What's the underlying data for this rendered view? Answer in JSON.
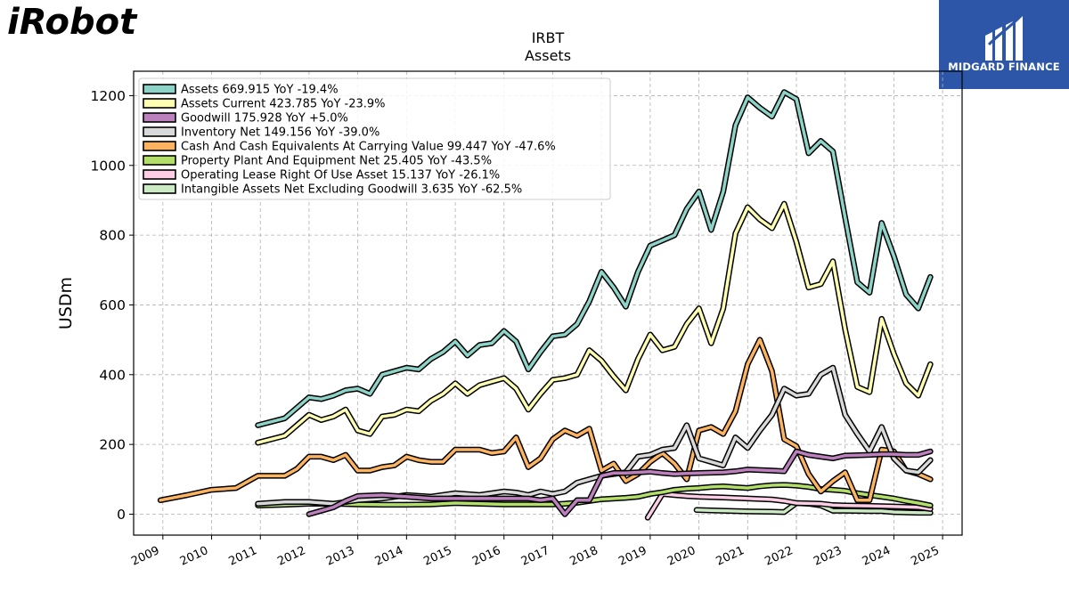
{
  "branding": {
    "left_logo_text": "iRobot",
    "left_logo_color": "#6aab1e",
    "right_logo_text": "MIDGARD FINANCE",
    "right_logo_bg": "#2d56a8"
  },
  "chart_data": {
    "type": "line",
    "title": "IRBT",
    "subtitle": "Assets",
    "ylabel": "USDm",
    "xlabel": "",
    "xlim": [
      2008.4,
      2025.4
    ],
    "ylim": [
      -60,
      1270
    ],
    "x_ticks": [
      "2009",
      "2010",
      "2011",
      "2012",
      "2013",
      "2014",
      "2015",
      "2016",
      "2017",
      "2018",
      "2019",
      "2020",
      "2021",
      "2022",
      "2023",
      "2024",
      "2025"
    ],
    "y_ticks": [
      "0",
      "200",
      "400",
      "600",
      "800",
      "1000",
      "1200"
    ],
    "grid": true,
    "legend_position": "top-left",
    "series": [
      {
        "name": "Assets  669.915 YoY -19.4%",
        "color": "#8dd3c7",
        "x": [
          2010.95,
          2011.5,
          2012.0,
          2012.25,
          2012.5,
          2012.75,
          2013.0,
          2013.25,
          2013.5,
          2013.75,
          2014.0,
          2014.25,
          2014.5,
          2014.75,
          2015.0,
          2015.25,
          2015.5,
          2015.75,
          2016.0,
          2016.25,
          2016.5,
          2016.75,
          2017.0,
          2017.25,
          2017.5,
          2017.75,
          2018.0,
          2018.25,
          2018.5,
          2018.75,
          2019.0,
          2019.25,
          2019.5,
          2019.75,
          2020.0,
          2020.25,
          2020.5,
          2020.75,
          2021.0,
          2021.25,
          2021.5,
          2021.75,
          2022.0,
          2022.25,
          2022.5,
          2022.75,
          2023.0,
          2023.25,
          2023.5,
          2023.75,
          2024.0,
          2024.25,
          2024.5,
          2024.75
        ],
        "y": [
          255,
          275,
          335,
          330,
          340,
          355,
          360,
          345,
          400,
          410,
          420,
          415,
          445,
          465,
          495,
          455,
          485,
          490,
          525,
          495,
          415,
          465,
          510,
          515,
          545,
          610,
          695,
          650,
          595,
          695,
          770,
          785,
          800,
          875,
          925,
          815,
          925,
          1115,
          1195,
          1165,
          1140,
          1210,
          1190,
          1035,
          1070,
          1040,
          850,
          665,
          635,
          835,
          740,
          630,
          590,
          680
        ]
      },
      {
        "name": "Assets Current  423.785 YoY -23.9%",
        "color": "#ffffb3",
        "x": [
          2010.95,
          2011.5,
          2012.0,
          2012.25,
          2012.5,
          2012.75,
          2013.0,
          2013.25,
          2013.5,
          2013.75,
          2014.0,
          2014.25,
          2014.5,
          2014.75,
          2015.0,
          2015.25,
          2015.5,
          2015.75,
          2016.0,
          2016.25,
          2016.5,
          2016.75,
          2017.0,
          2017.25,
          2017.5,
          2017.75,
          2018.0,
          2018.25,
          2018.5,
          2018.75,
          2019.0,
          2019.25,
          2019.5,
          2019.75,
          2020.0,
          2020.25,
          2020.5,
          2020.75,
          2021.0,
          2021.25,
          2021.5,
          2021.75,
          2022.0,
          2022.25,
          2022.5,
          2022.75,
          2023.0,
          2023.25,
          2023.5,
          2023.75,
          2024.0,
          2024.25,
          2024.5,
          2024.75
        ],
        "y": [
          205,
          225,
          285,
          270,
          280,
          300,
          240,
          230,
          280,
          285,
          300,
          295,
          325,
          345,
          375,
          345,
          370,
          380,
          390,
          360,
          300,
          345,
          385,
          390,
          400,
          470,
          440,
          395,
          355,
          445,
          515,
          470,
          480,
          545,
          590,
          490,
          590,
          805,
          880,
          845,
          820,
          890,
          780,
          650,
          660,
          725,
          530,
          365,
          350,
          560,
          460,
          375,
          340,
          430
        ]
      },
      {
        "name": "Goodwill  175.928 YoY +5.0%",
        "color": "#bc80bd",
        "x": [
          2012.0,
          2012.5,
          2012.75,
          2013.0,
          2013.5,
          2014.0,
          2014.5,
          2015.0,
          2015.5,
          2016.0,
          2016.5,
          2016.75,
          2017.0,
          2017.25,
          2017.5,
          2017.75,
          2018.0,
          2018.25,
          2018.5,
          2018.75,
          2019.0,
          2019.25,
          2019.5,
          2019.75,
          2020.0,
          2020.5,
          2020.75,
          2021.0,
          2021.5,
          2021.75,
          2022.0,
          2022.25,
          2022.5,
          2022.75,
          2023.0,
          2023.5,
          2023.75,
          2024.0,
          2024.25,
          2024.5,
          2024.75
        ],
        "y": [
          0,
          20,
          38,
          52,
          55,
          50,
          45,
          45,
          45,
          45,
          45,
          40,
          45,
          0,
          40,
          40,
          110,
          118,
          118,
          120,
          122,
          118,
          115,
          117,
          118,
          120,
          123,
          128,
          125,
          123,
          180,
          170,
          165,
          160,
          168,
          170,
          172,
          172,
          170,
          170,
          180
        ]
      },
      {
        "name": "Inventory Net  149.156 YoY -39.0%",
        "color": "#d9d9d9",
        "x": [
          2010.95,
          2011.5,
          2012.0,
          2012.5,
          2013.0,
          2013.5,
          2014.0,
          2014.5,
          2015.0,
          2015.5,
          2016.0,
          2016.25,
          2016.5,
          2016.75,
          2017.0,
          2017.25,
          2017.5,
          2017.75,
          2018.0,
          2018.25,
          2018.5,
          2018.75,
          2019.0,
          2019.25,
          2019.5,
          2019.75,
          2020.0,
          2020.25,
          2020.5,
          2020.75,
          2021.0,
          2021.25,
          2021.5,
          2021.75,
          2022.0,
          2022.25,
          2022.5,
          2022.75,
          2023.0,
          2023.25,
          2023.5,
          2023.75,
          2024.0,
          2024.25,
          2024.5,
          2024.75
        ],
        "y": [
          30,
          35,
          35,
          30,
          40,
          45,
          55,
          50,
          60,
          55,
          65,
          62,
          55,
          65,
          58,
          65,
          90,
          100,
          110,
          115,
          120,
          165,
          170,
          185,
          190,
          255,
          160,
          150,
          140,
          220,
          190,
          240,
          285,
          360,
          340,
          345,
          400,
          420,
          285,
          230,
          180,
          250,
          160,
          125,
          120,
          155
        ]
      },
      {
        "name": "Cash And Cash Equivalents At Carrying Value  99.447 YoY -47.6%",
        "color": "#fdb462",
        "x": [
          2008.95,
          2009.5,
          2010.0,
          2010.5,
          2010.95,
          2011.5,
          2011.75,
          2012.0,
          2012.25,
          2012.5,
          2012.75,
          2013.0,
          2013.25,
          2013.5,
          2013.75,
          2014.0,
          2014.25,
          2014.5,
          2014.75,
          2015.0,
          2015.25,
          2015.5,
          2015.75,
          2016.0,
          2016.25,
          2016.5,
          2016.75,
          2017.0,
          2017.25,
          2017.5,
          2017.75,
          2018.0,
          2018.25,
          2018.5,
          2018.75,
          2019.0,
          2019.25,
          2019.5,
          2019.75,
          2020.0,
          2020.25,
          2020.5,
          2020.75,
          2021.0,
          2021.25,
          2021.5,
          2021.75,
          2022.0,
          2022.25,
          2022.5,
          2022.75,
          2023.0,
          2023.25,
          2023.5,
          2023.75,
          2024.0,
          2024.25,
          2024.5,
          2024.75
        ],
        "y": [
          40,
          55,
          70,
          75,
          110,
          110,
          130,
          165,
          165,
          155,
          170,
          125,
          125,
          135,
          140,
          165,
          155,
          150,
          150,
          185,
          185,
          185,
          175,
          180,
          220,
          135,
          160,
          215,
          240,
          225,
          245,
          125,
          145,
          95,
          115,
          150,
          175,
          145,
          100,
          240,
          250,
          230,
          295,
          430,
          500,
          410,
          215,
          195,
          115,
          65,
          95,
          120,
          40,
          40,
          185,
          180,
          125,
          115,
          100
        ]
      },
      {
        "name": "Property Plant And Equipment Net  25.405 YoY -43.5%",
        "color": "#b3de69",
        "x": [
          2010.95,
          2011.5,
          2012.0,
          2012.5,
          2013.0,
          2013.5,
          2014.0,
          2014.5,
          2015.0,
          2015.5,
          2016.0,
          2016.5,
          2017.0,
          2017.25,
          2017.5,
          2017.75,
          2018.0,
          2018.5,
          2018.75,
          2019.0,
          2019.25,
          2019.5,
          2019.75,
          2020.0,
          2020.25,
          2020.5,
          2020.75,
          2021.0,
          2021.25,
          2021.5,
          2021.75,
          2022.0,
          2022.25,
          2022.5,
          2022.75,
          2023.0,
          2023.25,
          2023.5,
          2023.75,
          2024.0,
          2024.25,
          2024.5,
          2024.75
        ],
        "y": [
          25,
          27,
          30,
          30,
          28,
          27,
          27,
          28,
          32,
          30,
          28,
          28,
          28,
          30,
          33,
          38,
          43,
          47,
          50,
          58,
          63,
          70,
          73,
          75,
          78,
          80,
          77,
          75,
          80,
          83,
          84,
          82,
          78,
          72,
          70,
          67,
          60,
          55,
          50,
          45,
          38,
          32,
          25
        ]
      },
      {
        "name": "Operating Lease Right Of Use Asset  15.137 YoY -26.1%",
        "color": "#fccde5",
        "x": [
          2018.95,
          2019.25,
          2019.5,
          2019.75,
          2020.0,
          2020.5,
          2021.0,
          2021.5,
          2021.75,
          2022.0,
          2022.5,
          2022.75,
          2023.0,
          2023.5,
          2023.75,
          2024.0,
          2024.5,
          2024.75
        ],
        "y": [
          -10,
          58,
          55,
          52,
          50,
          48,
          45,
          42,
          38,
          32,
          30,
          26,
          25,
          24,
          23,
          22,
          20,
          15
        ]
      },
      {
        "name": "Intangible Assets Net Excluding Goodwill  3.635 YoY -62.5%",
        "color": "#ccebc5",
        "x": [
          2019.95,
          2020.25,
          2020.5,
          2020.75,
          2021.0,
          2021.5,
          2021.75,
          2022.0,
          2022.25,
          2022.5,
          2022.75,
          2023.0,
          2023.5,
          2023.75,
          2024.0,
          2024.5,
          2024.75
        ],
        "y": [
          12,
          11,
          10,
          9,
          8,
          7,
          6,
          32,
          30,
          25,
          10,
          10,
          9,
          9,
          6,
          4,
          4
        ]
      }
    ]
  }
}
